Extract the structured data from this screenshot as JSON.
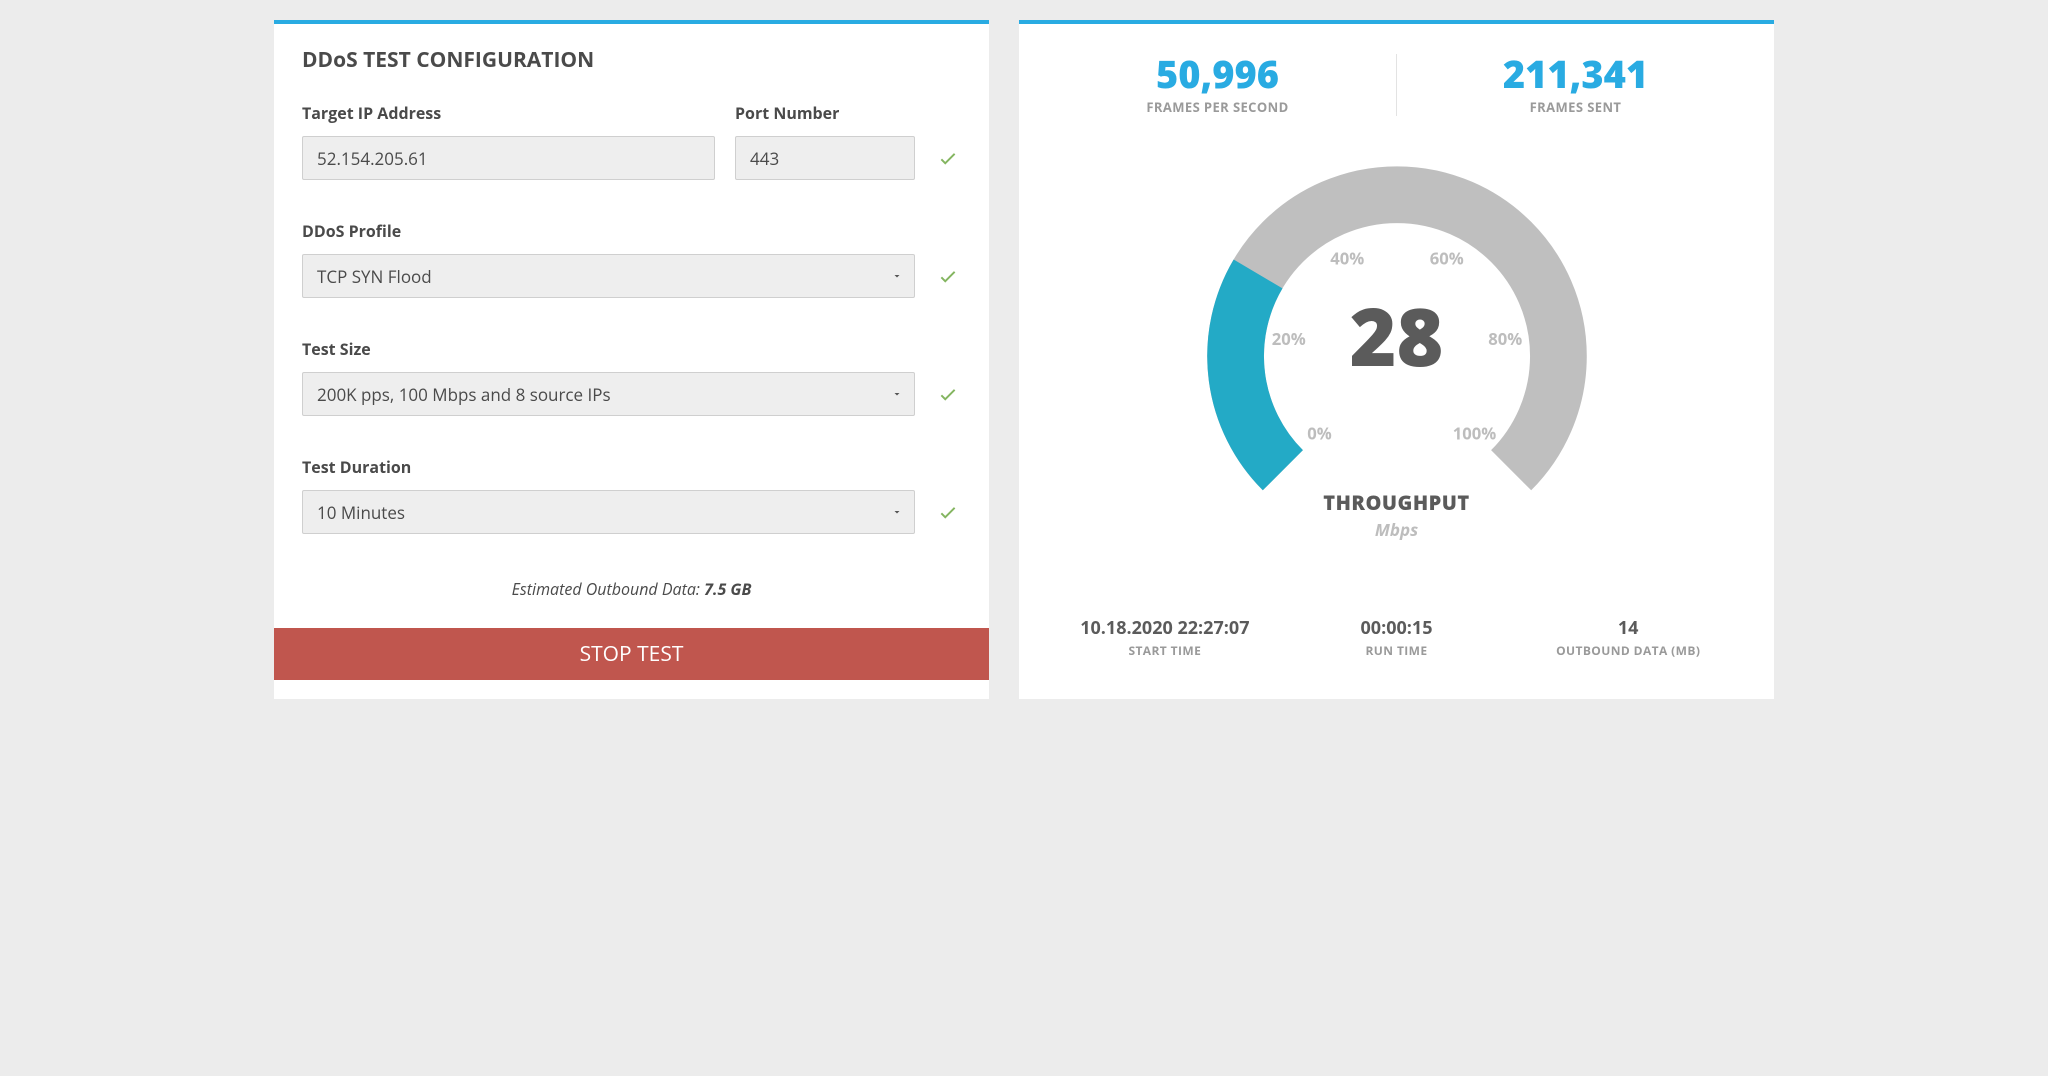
{
  "colors": {
    "accent": "#29abe2",
    "danger": "#c0564e",
    "success": "#84b560",
    "panel_bg": "#ffffff",
    "page_bg": "#ececec",
    "input_bg": "#eeeeee",
    "input_border": "#cfcfcf",
    "text_primary": "#4a4a4a",
    "text_muted": "#9a9a9a",
    "gauge_track": "#bfbfbf",
    "gauge_fill": "#23aac6",
    "tick_color": "#bdbdbd"
  },
  "config": {
    "title": "DDoS TEST CONFIGURATION",
    "target_ip": {
      "label": "Target IP Address",
      "value": "52.154.205.61"
    },
    "port": {
      "label": "Port Number",
      "value": "443"
    },
    "profile": {
      "label": "DDoS Profile",
      "value": "TCP SYN Flood"
    },
    "size": {
      "label": "Test Size",
      "value": "200K pps, 100 Mbps and 8 source IPs"
    },
    "duration": {
      "label": "Test Duration",
      "value": "10 Minutes"
    },
    "estimate_label": "Estimated Outbound Data: ",
    "estimate_value": "7.5 GB",
    "stop_button": "STOP TEST"
  },
  "stats": {
    "fps": {
      "value": "50,996",
      "label": "FRAMES PER SECOND"
    },
    "frames_sent": {
      "value": "211,341",
      "label": "FRAMES SENT"
    },
    "gauge": {
      "value": 28,
      "title": "THROUGHPUT",
      "unit": "Mbps",
      "track_color": "#bfbfbf",
      "fill_color": "#23aac6",
      "stroke_width": 58,
      "start_angle": -225,
      "end_angle": 45,
      "ticks": [
        {
          "label": "0%",
          "pct": 0
        },
        {
          "label": "20%",
          "pct": 20
        },
        {
          "label": "40%",
          "pct": 40
        },
        {
          "label": "60%",
          "pct": 60
        },
        {
          "label": "80%",
          "pct": 80
        },
        {
          "label": "100%",
          "pct": 100
        }
      ]
    },
    "start_time": {
      "value": "10.18.2020 22:27:07",
      "label": "START TIME"
    },
    "run_time": {
      "value": "00:00:15",
      "label": "RUN TIME"
    },
    "outbound": {
      "value": "14",
      "label": "OUTBOUND DATA (MB)"
    }
  }
}
